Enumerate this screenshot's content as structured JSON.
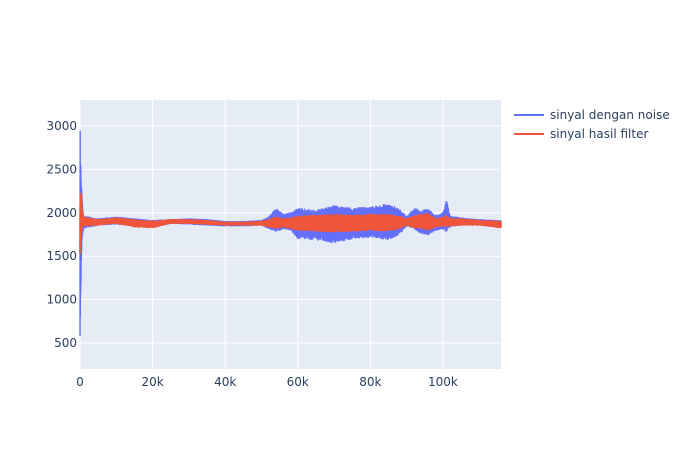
{
  "chart_data": {
    "type": "line",
    "title": "",
    "xlabel": "",
    "ylabel": "",
    "xlim": [
      0,
      116000
    ],
    "ylim": [
      200,
      3300
    ],
    "x_ticks": [
      0,
      20000,
      40000,
      60000,
      80000,
      100000
    ],
    "x_tick_labels": [
      "0",
      "20k",
      "40k",
      "60k",
      "80k",
      "100k"
    ],
    "y_ticks": [
      500,
      1000,
      1500,
      2000,
      2500,
      3000
    ],
    "y_tick_labels": [
      "500",
      "1000",
      "1500",
      "2000",
      "2500",
      "3000"
    ],
    "grid": true,
    "legend_position": "top-right",
    "background_color": "#e5ecf6",
    "series": [
      {
        "name": "sinyal dengan noise",
        "color": "#636efa",
        "envelope": {
          "x": [
            0,
            300,
            600,
            1000,
            5000,
            10000,
            15000,
            20000,
            25000,
            30000,
            35000,
            40000,
            45000,
            50000,
            52000,
            54000,
            56000,
            58000,
            60000,
            65000,
            70000,
            75000,
            80000,
            85000,
            88000,
            90000,
            92000,
            94000,
            96000,
            98000,
            100000,
            101000,
            102000,
            105000,
            110000,
            116000
          ],
          "low": [
            300,
            1250,
            1700,
            1820,
            1860,
            1870,
            1850,
            1830,
            1880,
            1870,
            1860,
            1850,
            1850,
            1860,
            1820,
            1780,
            1820,
            1800,
            1700,
            1690,
            1650,
            1700,
            1720,
            1690,
            1750,
            1850,
            1820,
            1760,
            1750,
            1800,
            1810,
            1780,
            1840,
            1860,
            1860,
            1830
          ],
          "high": [
            3150,
            2550,
            2150,
            1960,
            1930,
            1950,
            1930,
            1910,
            1920,
            1930,
            1920,
            1900,
            1900,
            1910,
            1950,
            2050,
            1980,
            2000,
            2050,
            2030,
            2080,
            2050,
            2070,
            2100,
            2050,
            1950,
            2050,
            2030,
            2040,
            1970,
            2000,
            2140,
            1960,
            1940,
            1920,
            1910
          ]
        }
      },
      {
        "name": "sinyal hasil filter",
        "color": "#ef553b",
        "envelope": {
          "x": [
            0,
            300,
            600,
            1000,
            5000,
            10000,
            15000,
            20000,
            25000,
            30000,
            35000,
            40000,
            45000,
            50000,
            52000,
            54000,
            56000,
            58000,
            60000,
            65000,
            70000,
            75000,
            80000,
            85000,
            88000,
            90000,
            92000,
            94000,
            96000,
            98000,
            100000,
            101000,
            102000,
            105000,
            110000,
            116000
          ],
          "low": [
            1500,
            1700,
            1820,
            1850,
            1860,
            1880,
            1840,
            1830,
            1880,
            1880,
            1870,
            1860,
            1860,
            1860,
            1840,
            1820,
            1840,
            1820,
            1800,
            1790,
            1780,
            1790,
            1800,
            1790,
            1820,
            1860,
            1830,
            1820,
            1800,
            1840,
            1850,
            1840,
            1850,
            1860,
            1860,
            1830
          ],
          "high": [
            2100,
            2300,
            2050,
            1950,
            1920,
            1940,
            1920,
            1900,
            1920,
            1920,
            1910,
            1890,
            1890,
            1900,
            1920,
            1950,
            1930,
            1940,
            1960,
            1970,
            1980,
            1970,
            1980,
            1980,
            1960,
            1930,
            1960,
            1980,
            1990,
            1930,
            1950,
            1970,
            1930,
            1930,
            1910,
            1900
          ]
        }
      }
    ]
  }
}
